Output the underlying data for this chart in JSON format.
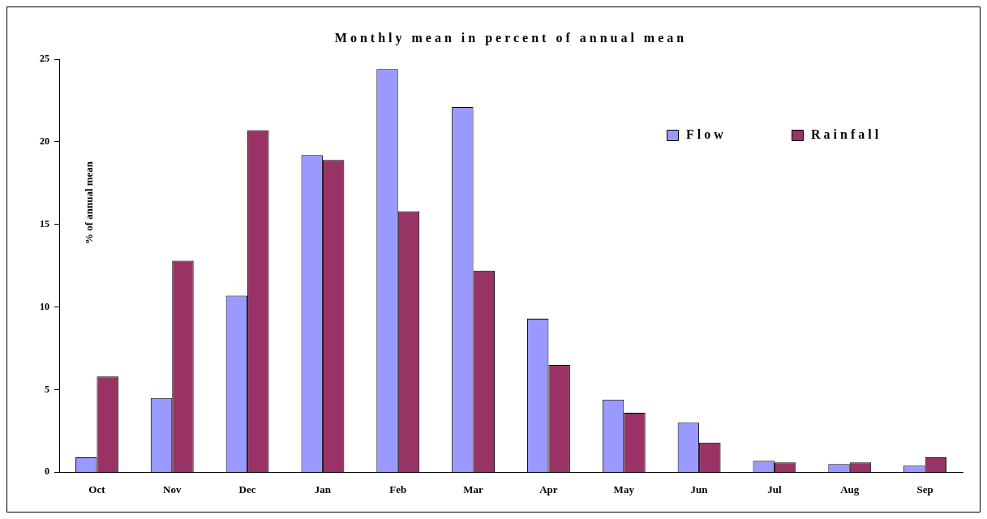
{
  "chart_data": {
    "type": "bar",
    "title": "Monthly mean in percent of annual mean",
    "ylabel": "% of annual mean",
    "categories": [
      "Oct",
      "Nov",
      "Dec",
      "Jan",
      "Feb",
      "Mar",
      "Apr",
      "May",
      "Jun",
      "Jul",
      "Aug",
      "Sep"
    ],
    "series": [
      {
        "name": "Flow",
        "color": "#9999ff",
        "values": [
          0.9,
          4.5,
          10.7,
          19.2,
          24.4,
          22.1,
          9.3,
          4.4,
          3.0,
          0.7,
          0.5,
          0.4
        ]
      },
      {
        "name": "Rainfall",
        "color": "#993366",
        "values": [
          5.8,
          12.8,
          20.7,
          18.9,
          15.8,
          12.2,
          6.5,
          3.6,
          1.8,
          0.6,
          0.6,
          0.9
        ]
      }
    ],
    "ylim": [
      0,
      25
    ],
    "yticks": [
      0,
      5,
      10,
      15,
      20,
      25
    ],
    "grid": false,
    "legend": "top right"
  }
}
